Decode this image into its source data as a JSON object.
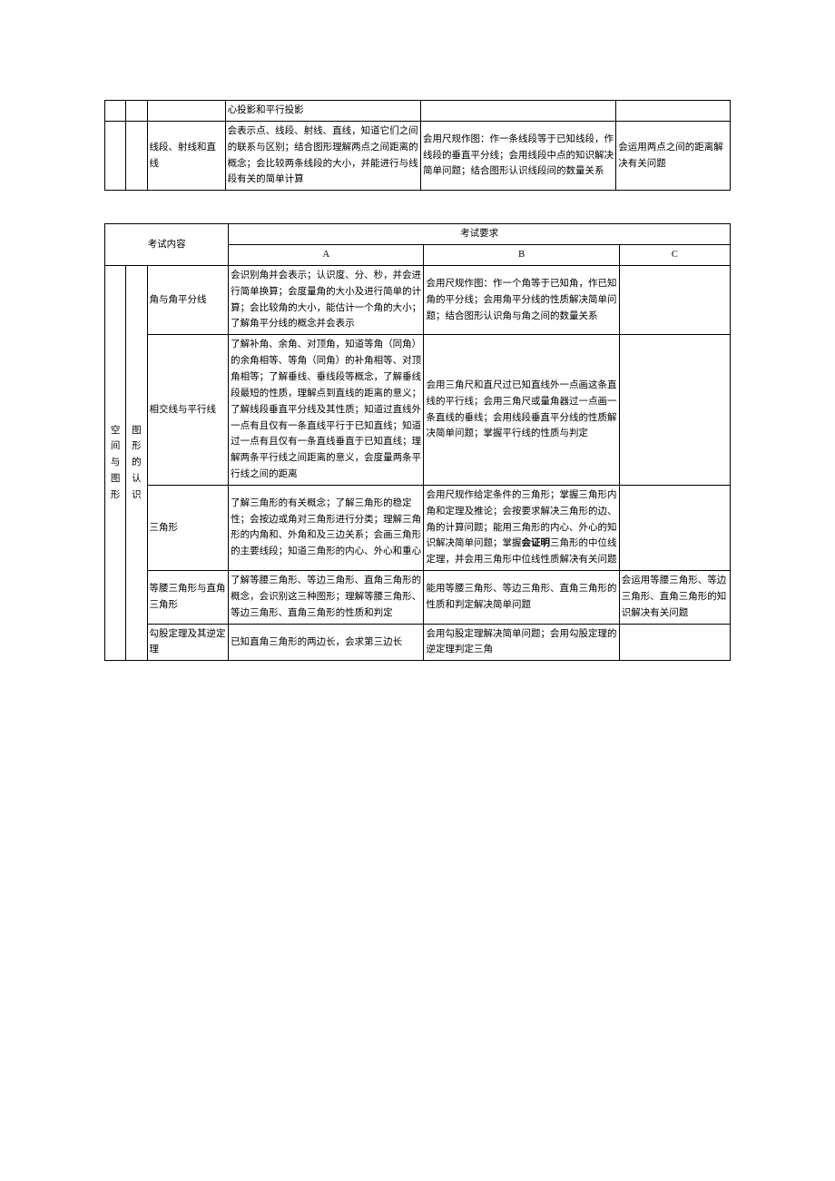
{
  "table1": {
    "rows": [
      {
        "lvl1": "",
        "lvl2": "",
        "topic": "",
        "a": "心投影和平行投影",
        "b": "",
        "c": ""
      },
      {
        "lvl1": "",
        "lvl2": "",
        "topic": "线段、射线和直线",
        "a": "会表示点、线段、射线、直线，知道它们之间的联系与区别；结合图形理解两点之间距离的概念；会比较两条线段的大小，并能进行与线段有关的简单计算",
        "b": "会用尺规作图：作一条线段等于已知线段，作线段的垂直平分线；会用线段中点的知识解决简单问题；结合图形认识线段间的数量关系",
        "c": "会运用两点之间的距离解决有关问题"
      }
    ]
  },
  "table2": {
    "header": {
      "content": "考试内容",
      "req": "考试要求",
      "a": "A",
      "b": "B",
      "c": "C"
    },
    "group": {
      "lvl1": "空间与图形",
      "lvl2": "图形的认识"
    },
    "rows": [
      {
        "topic": "角与角平分线",
        "a": "会识别角并会表示；认识度、分、秒，并会进行简单换算；会度量角的大小及进行简单的计算；会比较角的大小，能估计一个角的大小；了解角平分线的概念并会表示",
        "b": "会用尺规作图：作一个角等于已知角，作已知角的平分线；会用角平分线的性质解决简单问题；结合图形认识角与角之间的数量关系",
        "c": ""
      },
      {
        "topic": "相交线与平行线",
        "a": "了解补角、余角、对顶角，知道等角（同角）的余角相等、等角（同角）的补角相等、对顶角相等；了解垂线、垂线段等概念，了解垂线段最短的性质，理解点到直线的距离的意义；了解线段垂直平分线及其性质；知道过直线外一点有且仅有一条直线平行于已知直线；知道过一点有且仅有一条直线垂直于已知直线；理解两条平行线之间距离的意义，会度量两条平行线之间的距离",
        "b": "会用三角尺和直尺过已知直线外一点画这条直线的平行线；会用三角尺或量角器过一点画一条直线的垂线；会用线段垂直平分线的性质解决简单问题；掌握平行线的性质与判定",
        "c": ""
      },
      {
        "topic": "三角形",
        "a": "了解三角形的有关概念；了解三角形的稳定性；会按边或角对三角形进行分类；理解三角形的内角和、外角和及三边关系；会画三角形的主要线段；知道三角形的内心、外心和重心",
        "b_pre": "会用尺规作给定条件的三角形；掌握三角形内角和定理及推论；会按要求解决三角形的边、角的计算问题；能用三角形的内心、外心的知识解决简单问题；掌握",
        "b_bold": "会证明",
        "b_post": "三角形的中位线定理，并会用三角形中位线性质解决有关问题",
        "c": ""
      },
      {
        "topic": "等腰三角形与直角三角形",
        "a": "了解等腰三角形、等边三角形、直角三角形的概念，会识别这三种图形；理解等腰三角形、等边三角形、直角三角形的性质和判定",
        "b": "能用等腰三角形、等边三角形、直角三角形的性质和判定解决简单问题",
        "c": "会运用等腰三角形、等边三角形、直角三角形的知识解决有关问题"
      },
      {
        "topic": "勾股定理及其逆定理",
        "a": "已知直角三角形的两边长，会求第三边长",
        "b": "会用勾股定理解决简单问题；会用勾股定理的逆定理判定三角",
        "c": ""
      }
    ]
  }
}
